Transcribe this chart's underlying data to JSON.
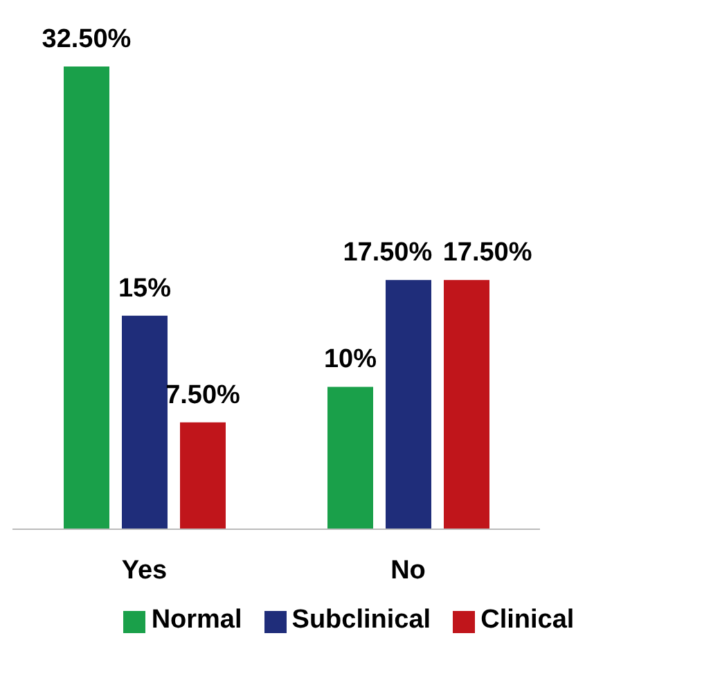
{
  "chart_data": {
    "type": "bar",
    "categories": [
      "Yes",
      "No"
    ],
    "series": [
      {
        "name": "Normal",
        "color": "#1aa04a",
        "values": [
          32.5,
          10
        ],
        "value_labels": [
          "32.50%",
          "10%"
        ]
      },
      {
        "name": "Subclinical",
        "color": "#1f2d7a",
        "values": [
          15,
          17.5
        ],
        "value_labels": [
          "15%",
          "17.50%"
        ]
      },
      {
        "name": "Clinical",
        "color": "#c0151b",
        "values": [
          7.5,
          17.5
        ],
        "value_labels": [
          "7.50%",
          "17.50%"
        ]
      }
    ],
    "ylim": [
      0,
      32.5
    ],
    "legend": "bottom",
    "grid": false
  }
}
